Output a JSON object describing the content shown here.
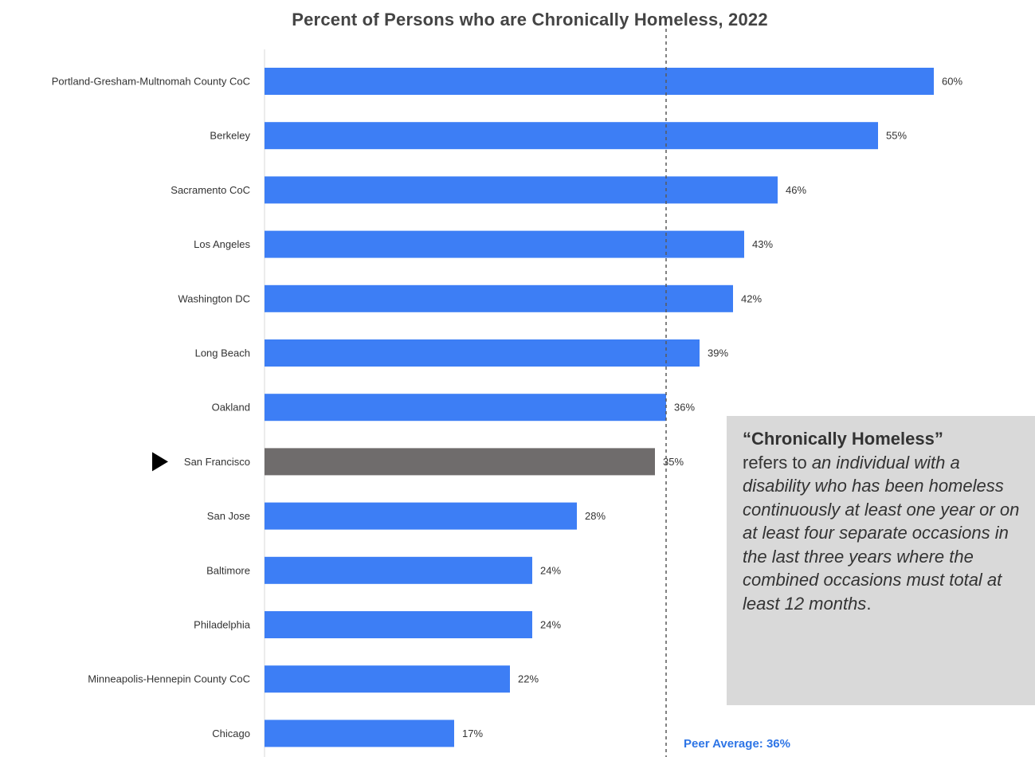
{
  "chart_data": {
    "type": "bar",
    "orientation": "horizontal",
    "title": "Percent of Persons who are Chronically Homeless, 2022",
    "categories": [
      "Portland-Gresham-Multnomah County CoC",
      "Berkeley",
      "Sacramento CoC",
      "Los Angeles",
      "Washington DC",
      "Long Beach",
      "Oakland",
      "San Francisco",
      "San Jose",
      "Baltimore",
      "Philadelphia",
      "Minneapolis-Hennepin County CoC",
      "Chicago"
    ],
    "values": [
      60,
      55,
      46,
      43,
      42,
      39,
      36,
      35,
      28,
      24,
      24,
      22,
      17
    ],
    "value_labels": [
      "60%",
      "55%",
      "46%",
      "43%",
      "42%",
      "39%",
      "36%",
      "35%",
      "28%",
      "24%",
      "24%",
      "22%",
      "17%"
    ],
    "highlight": "San Francisco",
    "bar_color": "#3d7ef5",
    "highlight_color": "#6f6c6c",
    "xlim": [
      0,
      60
    ],
    "grid": false,
    "reference_line": {
      "value": 36,
      "label": "Peer Average: 36%"
    },
    "peer_label_color": "#2e75e6"
  },
  "definition": {
    "term": "“Chronically Homeless”",
    "prefix": "refers to ",
    "body": "an individual with a disability who has been homeless continuously at least one year or on at least four separate occasions in the last three years where the combined occasions must total at least 12 months",
    "suffix": "."
  }
}
